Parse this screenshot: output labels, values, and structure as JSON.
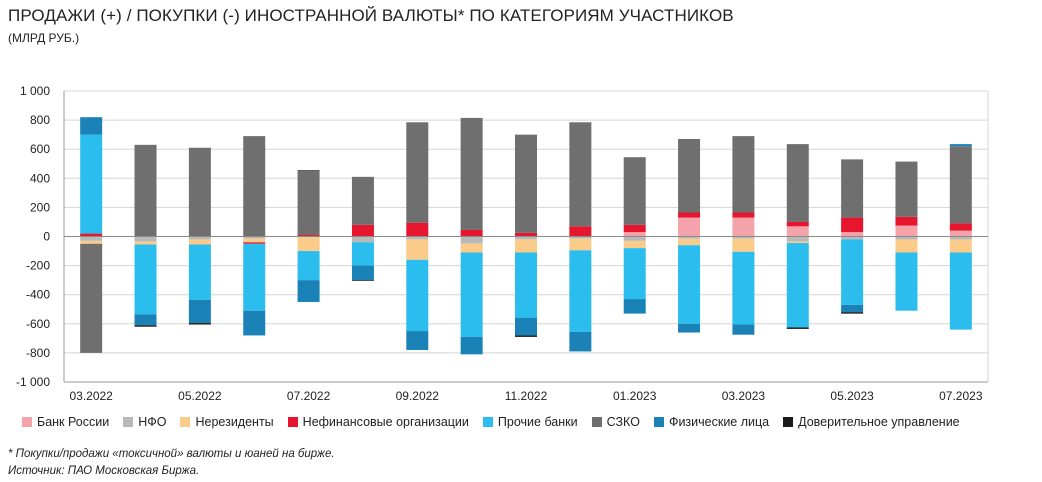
{
  "title": "ПРОДАЖИ (+) / ПОКУПКИ (-) ИНОСТРАННОЙ ВАЛЮТЫ* ПО КАТЕГОРИЯМ УЧАСТНИКОВ",
  "subtitle": "(МЛРД РУБ.)",
  "footnote_1": "* Покупки/продажи «токсичной» валюты и юаней на бирже.",
  "footnote_2": "Источник: ПАО Московская Биржа.",
  "chart_data": {
    "type": "bar",
    "stacked": true,
    "ylim": [
      -1000,
      1000
    ],
    "yticks": [
      1000,
      800,
      600,
      400,
      200,
      0,
      -200,
      -400,
      -600,
      -800,
      -1000
    ],
    "ytick_labels": [
      "1 000",
      "800",
      "600",
      "400",
      "200",
      "0",
      "-200",
      "-400",
      "-600",
      "-800",
      "-1 000"
    ],
    "grid": true,
    "legend_position": "bottom",
    "categories": [
      "03.2022",
      "04.2022",
      "05.2022",
      "06.2022",
      "07.2022",
      "08.2022",
      "09.2022",
      "10.2022",
      "11.2022",
      "12.2022",
      "01.2023",
      "02.2023",
      "03.2023",
      "04.2023",
      "05.2023",
      "06.2023",
      "07.2023"
    ],
    "x_tick_labels": [
      "03.2022",
      "",
      "05.2022",
      "",
      "07.2022",
      "",
      "09.2022",
      "",
      "11.2022",
      "",
      "01.2023",
      "",
      "03.2023",
      "",
      "05.2023",
      "",
      "07.2023"
    ],
    "series": [
      {
        "name": "Банк России",
        "color": "#F4A3AA",
        "values": [
          0,
          0,
          0,
          0,
          0,
          0,
          0,
          0,
          0,
          0,
          30,
          130,
          130,
          70,
          30,
          75,
          40
        ]
      },
      {
        "name": "НФО",
        "color": "#B9B9B9",
        "values": [
          -30,
          -35,
          -20,
          -15,
          0,
          -40,
          -20,
          -50,
          -20,
          -15,
          -30,
          -15,
          -15,
          -35,
          -20,
          -20,
          -20
        ]
      },
      {
        "name": "Нерезиденты",
        "color": "#FBCB8A",
        "values": [
          -20,
          -20,
          -35,
          -25,
          -100,
          0,
          -140,
          -60,
          -90,
          -80,
          -50,
          -45,
          -90,
          -10,
          0,
          -90,
          -90
        ]
      },
      {
        "name": "Нефинансовые организации",
        "color": "#E5162E",
        "values": [
          20,
          0,
          0,
          -10,
          10,
          80,
          95,
          45,
          25,
          70,
          50,
          35,
          35,
          30,
          100,
          60,
          50
        ]
      },
      {
        "name": "Прочие банки",
        "color": "#2BBDEE",
        "values": [
          680,
          -480,
          -380,
          -460,
          -200,
          -160,
          -490,
          -580,
          -450,
          -560,
          -350,
          -540,
          -500,
          -580,
          -450,
          -400,
          -530
        ]
      },
      {
        "name": "СЗКО",
        "color": "#6F6F6F",
        "values": [
          -750,
          630,
          610,
          690,
          440,
          330,
          690,
          770,
          675,
          715,
          465,
          505,
          525,
          535,
          400,
          380,
          530
        ]
      },
      {
        "name": "Физические лица",
        "color": "#1B82B8",
        "values": [
          120,
          -75,
          -160,
          -170,
          -150,
          -100,
          -130,
          -120,
          -120,
          -135,
          -100,
          -60,
          -70,
          0,
          -50,
          0,
          15
        ]
      },
      {
        "name": "Доверительное управление",
        "color": "#1A1A1A",
        "values": [
          0,
          -10,
          -10,
          0,
          5,
          -5,
          0,
          0,
          -10,
          0,
          0,
          0,
          0,
          -10,
          -10,
          0,
          0
        ]
      }
    ]
  }
}
